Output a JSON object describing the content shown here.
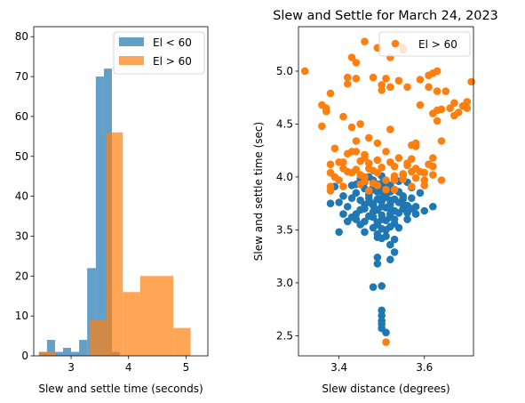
{
  "chart_data": [
    {
      "type": "bar",
      "subtype": "histogram",
      "title": "",
      "xlabel": "Slew and settle time (seconds)",
      "ylabel": "",
      "xlim": [
        2.35,
        5.38
      ],
      "ylim": [
        0,
        82.5
      ],
      "xticks": [
        3,
        4,
        5
      ],
      "yticks": [
        0,
        10,
        20,
        30,
        40,
        50,
        60,
        70,
        80
      ],
      "legend": "top-right",
      "series": [
        {
          "name": "El < 60",
          "color": "#1f77b4",
          "alpha": 0.7,
          "bins": [
            {
              "x0": 2.44,
              "x1": 2.58,
              "count": 1
            },
            {
              "x0": 2.58,
              "x1": 2.72,
              "count": 4
            },
            {
              "x0": 2.72,
              "x1": 2.86,
              "count": 1
            },
            {
              "x0": 2.86,
              "x1": 3.0,
              "count": 2
            },
            {
              "x0": 3.0,
              "x1": 3.14,
              "count": 1
            },
            {
              "x0": 3.14,
              "x1": 3.28,
              "count": 4
            },
            {
              "x0": 3.28,
              "x1": 3.43,
              "count": 22
            },
            {
              "x0": 3.43,
              "x1": 3.57,
              "count": 70
            },
            {
              "x0": 3.57,
              "x1": 3.71,
              "count": 72
            },
            {
              "x0": 3.71,
              "x1": 3.85,
              "count": 1
            }
          ]
        },
        {
          "name": "El > 60",
          "color": "#ff7f0e",
          "alpha": 0.7,
          "bins": [
            {
              "x0": 2.44,
              "x1": 2.73,
              "count": 1
            },
            {
              "x0": 2.73,
              "x1": 3.03,
              "count": 0
            },
            {
              "x0": 3.03,
              "x1": 3.32,
              "count": 0
            },
            {
              "x0": 3.32,
              "x1": 3.61,
              "count": 9
            },
            {
              "x0": 3.61,
              "x1": 3.9,
              "count": 56
            },
            {
              "x0": 3.9,
              "x1": 4.2,
              "count": 16
            },
            {
              "x0": 4.2,
              "x1": 4.49,
              "count": 20
            },
            {
              "x0": 4.49,
              "x1": 4.78,
              "count": 20
            },
            {
              "x0": 4.78,
              "x1": 5.08,
              "count": 7
            }
          ]
        }
      ]
    },
    {
      "type": "scatter",
      "title": "Slew and Settle for March 24, 2023",
      "xlabel": "Slew distance (degrees)",
      "ylabel": "Slew and settle time (sec)",
      "xlim": [
        3.305,
        3.715
      ],
      "ylim": [
        2.31,
        5.42
      ],
      "xticks": [
        3.4,
        3.6
      ],
      "xtick_labels": [
        "3.4",
        "3.6"
      ],
      "yticks": [
        2.5,
        3.0,
        3.5,
        4.0,
        4.5,
        5.0
      ],
      "ytick_labels": [
        "2.5",
        "3.0",
        "3.5",
        "4.0",
        "4.5",
        "5.0"
      ],
      "legend": "top-right",
      "series": [
        {
          "name": "",
          "color": "#1f77b4",
          "points": [
            [
              3.43,
              3.92
            ],
            [
              3.46,
              3.95
            ],
            [
              3.48,
              3.9
            ],
            [
              3.5,
              3.94
            ],
            [
              3.52,
              3.92
            ],
            [
              3.54,
              3.96
            ],
            [
              3.44,
              3.85
            ],
            [
              3.47,
              3.83
            ],
            [
              3.49,
              3.86
            ],
            [
              3.51,
              3.84
            ],
            [
              3.53,
              3.88
            ],
            [
              3.55,
              3.82
            ],
            [
              3.45,
              3.78
            ],
            [
              3.48,
              3.75
            ],
            [
              3.5,
              3.77
            ],
            [
              3.52,
              3.74
            ],
            [
              3.54,
              3.76
            ],
            [
              3.56,
              3.73
            ],
            [
              3.42,
              3.72
            ],
            [
              3.46,
              3.7
            ],
            [
              3.49,
              3.69
            ],
            [
              3.51,
              3.71
            ],
            [
              3.53,
              3.68
            ],
            [
              3.55,
              3.7
            ],
            [
              3.44,
              3.65
            ],
            [
              3.47,
              3.63
            ],
            [
              3.5,
              3.64
            ],
            [
              3.52,
              3.62
            ],
            [
              3.54,
              3.66
            ],
            [
              3.46,
              3.58
            ],
            [
              3.49,
              3.57
            ],
            [
              3.51,
              3.59
            ],
            [
              3.53,
              3.56
            ],
            [
              3.48,
              3.52
            ],
            [
              3.5,
              3.51
            ],
            [
              3.52,
              3.53
            ],
            [
              3.49,
              3.46
            ],
            [
              3.51,
              3.44
            ],
            [
              3.5,
              3.42
            ],
            [
              3.53,
              3.41
            ],
            [
              3.48,
              3.88
            ],
            [
              3.5,
              3.87
            ],
            [
              3.52,
              3.86
            ],
            [
              3.47,
              3.8
            ],
            [
              3.49,
              3.79
            ],
            [
              3.51,
              3.81
            ],
            [
              3.53,
              3.79
            ],
            [
              3.46,
              3.74
            ],
            [
              3.48,
              3.73
            ],
            [
              3.5,
              3.72
            ],
            [
              3.52,
              3.7
            ],
            [
              3.55,
              3.74
            ],
            [
              3.57,
              3.8
            ],
            [
              3.58,
              3.72
            ],
            [
              3.4,
              3.76
            ],
            [
              3.39,
              3.91
            ],
            [
              3.41,
              3.65
            ],
            [
              3.42,
              3.58
            ],
            [
              3.45,
              3.55
            ],
            [
              3.56,
              3.6
            ],
            [
              3.58,
              3.65
            ],
            [
              3.6,
              3.68
            ],
            [
              3.62,
              3.72
            ],
            [
              3.59,
              3.85
            ],
            [
              3.57,
              3.9
            ],
            [
              3.45,
              3.98
            ],
            [
              3.47,
              4.0
            ],
            [
              3.5,
              4.01
            ],
            [
              3.53,
              3.99
            ],
            [
              3.55,
              4.02
            ],
            [
              3.43,
              3.62
            ],
            [
              3.4,
              3.48
            ],
            [
              3.38,
              3.75
            ],
            [
              3.41,
              3.82
            ],
            [
              3.44,
              3.93
            ],
            [
              3.56,
              3.95
            ],
            [
              3.54,
              3.52
            ],
            [
              3.52,
              3.36
            ],
            [
              3.53,
              3.29
            ],
            [
              3.52,
              3.22
            ],
            [
              3.49,
              3.24
            ],
            [
              3.49,
              3.18
            ],
            [
              3.48,
              2.96
            ],
            [
              3.5,
              2.97
            ],
            [
              3.5,
              2.74
            ],
            [
              3.5,
              2.69
            ],
            [
              3.5,
              2.64
            ],
            [
              3.5,
              2.61
            ],
            [
              3.5,
              2.57
            ],
            [
              3.51,
              2.53
            ],
            [
              3.49,
              3.43
            ],
            [
              3.46,
              3.48
            ],
            [
              3.44,
              3.6
            ],
            [
              3.51,
              3.9
            ],
            [
              3.49,
              3.93
            ],
            [
              3.51,
              3.96
            ],
            [
              3.48,
              3.97
            ],
            [
              3.46,
              3.89
            ],
            [
              3.54,
              3.86
            ],
            [
              3.5,
              3.8
            ],
            [
              3.52,
              3.78
            ],
            [
              3.48,
              3.67
            ],
            [
              3.5,
              3.6
            ],
            [
              3.52,
              3.65
            ],
            [
              3.47,
              3.76
            ],
            [
              3.45,
              3.69
            ],
            [
              3.43,
              3.8
            ],
            [
              3.55,
              3.79
            ],
            [
              3.57,
              3.7
            ],
            [
              3.56,
              3.66
            ],
            [
              3.53,
              3.6
            ],
            [
              3.49,
              3.55
            ],
            [
              3.51,
              3.5
            ],
            [
              3.48,
              3.62
            ]
          ]
        },
        {
          "name": "El > 60",
          "color": "#ff7f0e",
          "points": [
            [
              3.32,
              5.0
            ],
            [
              3.36,
              4.68
            ],
            [
              3.37,
              4.65
            ],
            [
              3.37,
              4.62
            ],
            [
              3.36,
              4.48
            ],
            [
              3.38,
              4.79
            ],
            [
              3.39,
              4.27
            ],
            [
              3.38,
              4.12
            ],
            [
              3.38,
              4.04
            ],
            [
              3.38,
              3.91
            ],
            [
              3.38,
              3.87
            ],
            [
              3.39,
              4.0
            ],
            [
              3.4,
              3.97
            ],
            [
              3.41,
              3.91
            ],
            [
              3.41,
              4.14
            ],
            [
              3.41,
              4.08
            ],
            [
              3.41,
              4.57
            ],
            [
              3.42,
              4.88
            ],
            [
              3.42,
              4.94
            ],
            [
              3.42,
              4.05
            ],
            [
              3.43,
              4.47
            ],
            [
              3.43,
              5.13
            ],
            [
              3.43,
              4.24
            ],
            [
              3.43,
              4.04
            ],
            [
              3.44,
              4.34
            ],
            [
              3.44,
              4.24
            ],
            [
              3.44,
              4.93
            ],
            [
              3.44,
              5.08
            ],
            [
              3.45,
              4.15
            ],
            [
              3.45,
              3.93
            ],
            [
              3.45,
              4.02
            ],
            [
              3.46,
              5.28
            ],
            [
              3.46,
              3.96
            ],
            [
              3.46,
              4.0
            ],
            [
              3.46,
              4.21
            ],
            [
              3.47,
              3.87
            ],
            [
              3.47,
              4.08
            ],
            [
              3.47,
              4.13
            ],
            [
              3.48,
              4.94
            ],
            [
              3.48,
              3.94
            ],
            [
              3.49,
              5.22
            ],
            [
              3.49,
              4.32
            ],
            [
              3.49,
              4.04
            ],
            [
              3.49,
              3.92
            ],
            [
              3.49,
              4.16
            ],
            [
              3.5,
              4.87
            ],
            [
              3.5,
              4.82
            ],
            [
              3.51,
              4.93
            ],
            [
              3.51,
              4.24
            ],
            [
              3.51,
              3.97
            ],
            [
              3.51,
              3.88
            ],
            [
              3.51,
              2.44
            ],
            [
              3.52,
              5.13
            ],
            [
              3.52,
              4.85
            ],
            [
              3.52,
              4.14
            ],
            [
              3.53,
              4.1
            ],
            [
              3.53,
              4.01
            ],
            [
              3.53,
              3.88
            ],
            [
              3.53,
              3.97
            ],
            [
              3.54,
              4.18
            ],
            [
              3.54,
              4.91
            ],
            [
              3.55,
              5.22
            ],
            [
              3.55,
              5.2
            ],
            [
              3.55,
              4.03
            ],
            [
              3.55,
              3.98
            ],
            [
              3.56,
              4.85
            ],
            [
              3.56,
              4.13
            ],
            [
              3.57,
              4.17
            ],
            [
              3.57,
              4.05
            ],
            [
              3.57,
              3.91
            ],
            [
              3.58,
              4.29
            ],
            [
              3.58,
              4.32
            ],
            [
              3.58,
              3.99
            ],
            [
              3.59,
              4.68
            ],
            [
              3.59,
              4.92
            ],
            [
              3.59,
              4.05
            ],
            [
              3.6,
              4.04
            ],
            [
              3.6,
              3.92
            ],
            [
              3.6,
              3.97
            ],
            [
              3.61,
              4.12
            ],
            [
              3.61,
              4.96
            ],
            [
              3.61,
              4.85
            ],
            [
              3.62,
              4.6
            ],
            [
              3.62,
              4.98
            ],
            [
              3.62,
              4.1
            ],
            [
              3.62,
              4.18
            ],
            [
              3.63,
              5.0
            ],
            [
              3.63,
              4.81
            ],
            [
              3.63,
              4.63
            ],
            [
              3.63,
              4.53
            ],
            [
              3.64,
              4.34
            ],
            [
              3.64,
              4.64
            ],
            [
              3.64,
              3.97
            ],
            [
              3.65,
              4.81
            ],
            [
              3.66,
              4.65
            ],
            [
              3.67,
              4.7
            ],
            [
              3.67,
              4.58
            ],
            [
              3.68,
              4.61
            ],
            [
              3.69,
              4.67
            ],
            [
              3.7,
              4.65
            ],
            [
              3.7,
              4.71
            ],
            [
              3.71,
              4.9
            ],
            [
              3.4,
              4.14
            ],
            [
              3.42,
              4.22
            ],
            [
              3.44,
              4.07
            ],
            [
              3.46,
              4.18
            ],
            [
              3.48,
              4.06
            ],
            [
              3.5,
              4.09
            ],
            [
              3.56,
              4.11
            ],
            [
              3.58,
              4.08
            ],
            [
              3.62,
              4.02
            ],
            [
              3.45,
              4.5
            ],
            [
              3.47,
              4.37
            ],
            [
              3.52,
              4.45
            ],
            [
              3.57,
              4.3
            ]
          ]
        }
      ]
    }
  ]
}
